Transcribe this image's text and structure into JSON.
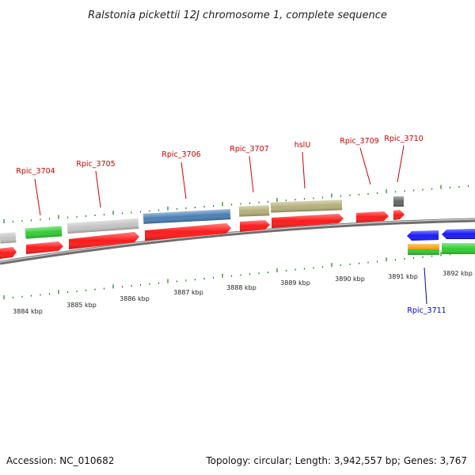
{
  "title": "Ralstonia pickettii 12J chromosome 1, complete sequence",
  "footer": {
    "accession": "Accession: NC_010682",
    "topology": "Topology: circular; Length: 3,942,557 bp; Genes: 3,767"
  },
  "colors": {
    "backbone": "#8a8a8a",
    "tick": "#1a7a1a",
    "label_red": "#cc0000",
    "label_blue": "#0000cc",
    "cds": "#ff1a1a",
    "gene_gray": "#c4c4c4",
    "gene_green": "#33cc33",
    "gene_blue": "#4a7fb5",
    "gene_khaki": "#b5b07a",
    "gene_dark": "#666666",
    "gene_royal": "#1a1aff",
    "gene_orange": "#ff9900"
  },
  "scale_labels": [
    "3884 kbp",
    "3885 kbp",
    "3886 kbp",
    "3887 kbp",
    "3888 kbp",
    "3889 kbp",
    "3890 kbp",
    "3891 kbp",
    "3892 kbp"
  ],
  "gene_labels": [
    {
      "text": "Rpic_3704",
      "color": "red"
    },
    {
      "text": "Rpic_3705",
      "color": "red"
    },
    {
      "text": "Rpic_3706",
      "color": "red"
    },
    {
      "text": "Rpic_3707",
      "color": "red"
    },
    {
      "text": "hslU",
      "color": "red"
    },
    {
      "text": "Rpic_3709",
      "color": "red"
    },
    {
      "text": "Rpic_3710",
      "color": "red"
    },
    {
      "text": "Rpic_3711",
      "color": "blue"
    }
  ]
}
